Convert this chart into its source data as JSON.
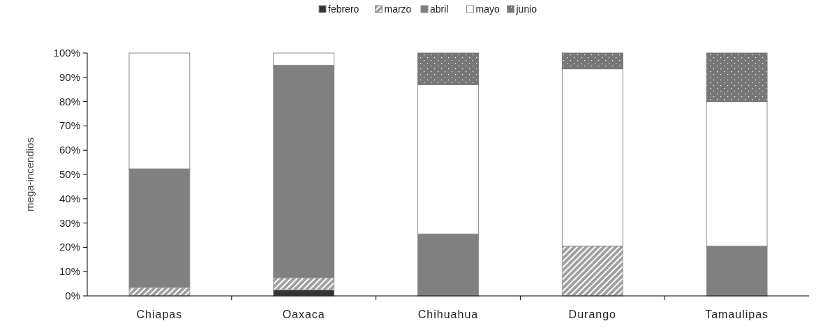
{
  "chart_data": {
    "type": "bar",
    "stacked": true,
    "ylabel": "mega-incendios",
    "categories": [
      "Chiapas",
      "Oaxaca",
      "Chihuahua",
      "Durango",
      "Tamaulipas"
    ],
    "series": [
      {
        "name": "febrero",
        "color": "#333333",
        "values": [
          0,
          2.5,
          0,
          0,
          0
        ]
      },
      {
        "name": "marzo",
        "color": "#a0a0a0",
        "values": [
          3.5,
          5,
          0,
          20.5,
          0
        ]
      },
      {
        "name": "abril",
        "color": "#808080",
        "values": [
          48.8,
          87.5,
          25.5,
          0,
          20.5
        ]
      },
      {
        "name": "mayo",
        "color": "#ffffff",
        "values": [
          47.7,
          5,
          61.5,
          73,
          59.5
        ]
      },
      {
        "name": "junio",
        "color": "#777777",
        "values": [
          0,
          0,
          13,
          6.5,
          20
        ]
      }
    ],
    "ylim": [
      0,
      100
    ],
    "yticks": [
      {
        "value": 0,
        "label": "0%"
      },
      {
        "value": 10,
        "label": "10%"
      },
      {
        "value": 20,
        "label": "20%"
      },
      {
        "value": 30,
        "label": "30%"
      },
      {
        "value": 40,
        "label": "40%"
      },
      {
        "value": 50,
        "label": "50%"
      },
      {
        "value": 60,
        "label": "60%"
      },
      {
        "value": 70,
        "label": "70%"
      },
      {
        "value": 80,
        "label": "80%"
      },
      {
        "value": 90,
        "label": "90%"
      },
      {
        "value": 100,
        "label": "100%"
      }
    ],
    "grid": false,
    "legend": "top"
  }
}
